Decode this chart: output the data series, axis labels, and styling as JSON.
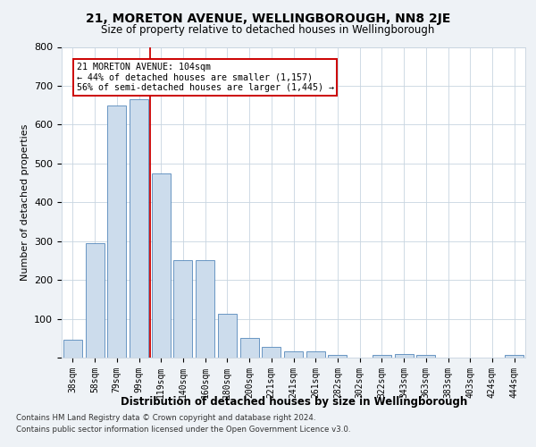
{
  "title": "21, MORETON AVENUE, WELLINGBOROUGH, NN8 2JE",
  "subtitle": "Size of property relative to detached houses in Wellingborough",
  "xlabel": "Distribution of detached houses by size in Wellingborough",
  "ylabel": "Number of detached properties",
  "bar_color": "#ccdcec",
  "bar_edge_color": "#5588bb",
  "categories": [
    "38sqm",
    "58sqm",
    "79sqm",
    "99sqm",
    "119sqm",
    "140sqm",
    "160sqm",
    "180sqm",
    "200sqm",
    "221sqm",
    "241sqm",
    "261sqm",
    "282sqm",
    "302sqm",
    "322sqm",
    "343sqm",
    "363sqm",
    "383sqm",
    "403sqm",
    "424sqm",
    "444sqm"
  ],
  "values": [
    45,
    295,
    650,
    665,
    475,
    250,
    250,
    113,
    50,
    27,
    15,
    15,
    8,
    0,
    7,
    10,
    7,
    0,
    0,
    0,
    7
  ],
  "vline_x_index": 3.5,
  "vline_color": "#cc0000",
  "annotation_text": "21 MORETON AVENUE: 104sqm\n← 44% of detached houses are smaller (1,157)\n56% of semi-detached houses are larger (1,445) →",
  "ylim": [
    0,
    800
  ],
  "yticks": [
    0,
    100,
    200,
    300,
    400,
    500,
    600,
    700,
    800
  ],
  "footer1": "Contains HM Land Registry data © Crown copyright and database right 2024.",
  "footer2": "Contains public sector information licensed under the Open Government Licence v3.0.",
  "background_color": "#eef2f6",
  "plot_bg_color": "#ffffff",
  "grid_color": "#c8d4e0"
}
